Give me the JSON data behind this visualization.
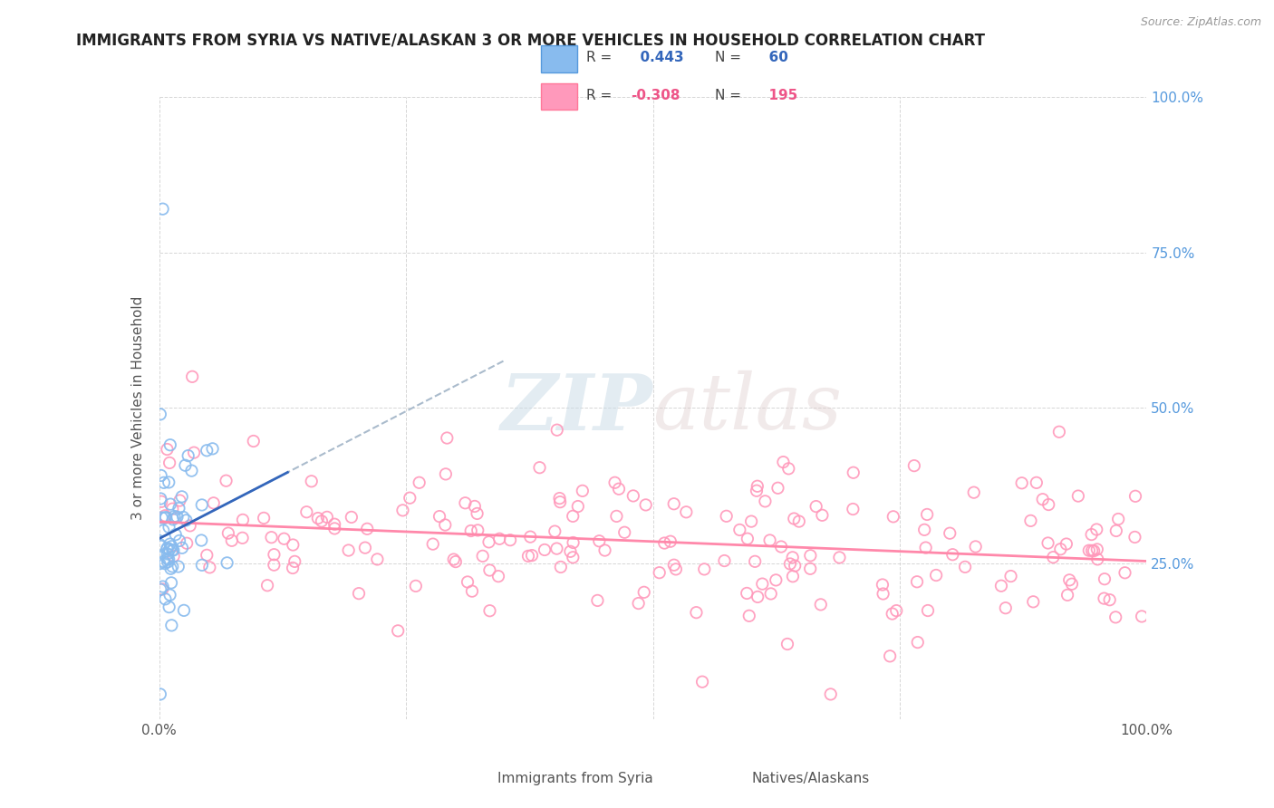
{
  "title": "IMMIGRANTS FROM SYRIA VS NATIVE/ALASKAN 3 OR MORE VEHICLES IN HOUSEHOLD CORRELATION CHART",
  "source_text": "Source: ZipAtlas.com",
  "ylabel": "3 or more Vehicles in Household",
  "watermark_zip": "ZIP",
  "watermark_atlas": "atlas",
  "blue_R": 0.443,
  "blue_N": 60,
  "pink_R": -0.308,
  "pink_N": 195,
  "blue_color": "#88BBEE",
  "pink_color": "#FF99BB",
  "blue_edge": "#5599DD",
  "pink_edge": "#FF7799",
  "blue_trend_color": "#3366BB",
  "pink_trend_color": "#FF88AA",
  "blue_dashed_color": "#AABBCC",
  "legend_blue_label": "Immigrants from Syria",
  "legend_pink_label": "Natives/Alaskans",
  "right_tick_color": "#5599DD",
  "title_color": "#222222",
  "source_color": "#999999"
}
